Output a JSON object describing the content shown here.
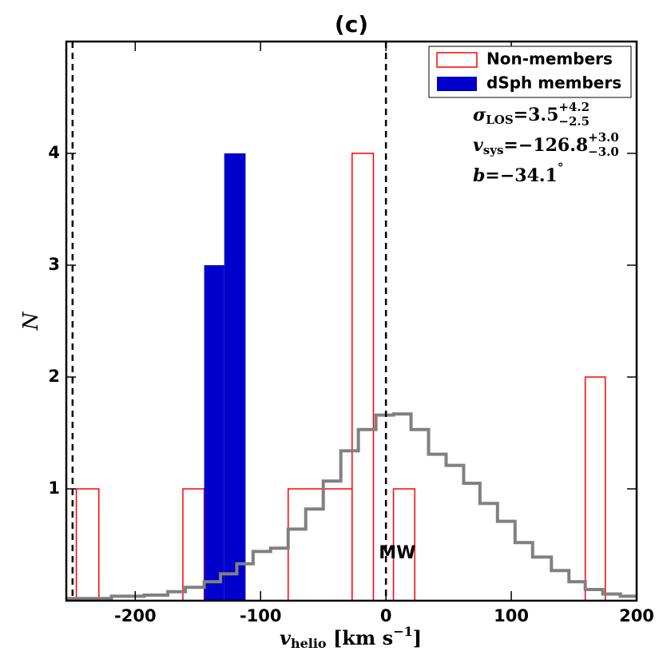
{
  "chart_data": {
    "type": "histogram",
    "title": "(c)",
    "xlabel": {
      "symbol": "v",
      "sub": "helio",
      "unit": " [km s",
      "sup": "−1",
      "close": "]"
    },
    "ylabel": "N",
    "xlim": [
      -255,
      200
    ],
    "ylim": [
      0,
      5
    ],
    "xticks": [
      -200,
      -100,
      0,
      100,
      200
    ],
    "yticks": [
      1,
      2,
      3,
      4
    ],
    "legend": "upper right",
    "series": [
      {
        "name": "Non-members",
        "color": "#ff0000",
        "style": "outline",
        "bins": [
          -247,
          -229,
          -162,
          -145,
          -78,
          -27,
          -10,
          6,
          23,
          159,
          175
        ],
        "values": [
          1,
          0,
          1,
          0,
          1,
          4,
          0,
          1,
          0,
          2
        ]
      },
      {
        "name": "dSph members",
        "color": "#0000cc",
        "style": "filled",
        "bins": [
          -145,
          -129,
          -112
        ],
        "values": [
          3,
          4
        ]
      },
      {
        "color": "#808080",
        "style": "step",
        "bins": [
          -255,
          -219,
          -193,
          -174,
          -160,
          -145,
          -132,
          -119,
          -106,
          -92,
          -78,
          -64,
          -50,
          -36,
          -22,
          -8,
          6,
          20,
          34,
          48,
          62,
          75,
          89,
          103,
          117,
          132,
          146,
          159,
          173,
          187,
          200
        ],
        "values": [
          0.02,
          0.04,
          0.05,
          0.08,
          0.12,
          0.17,
          0.24,
          0.33,
          0.44,
          0.47,
          0.64,
          0.82,
          1.07,
          1.34,
          1.53,
          1.66,
          1.67,
          1.53,
          1.31,
          1.21,
          1.05,
          0.87,
          0.71,
          0.52,
          0.39,
          0.27,
          0.17,
          0.1,
          0.06,
          0.04
        ]
      }
    ],
    "vlines": [
      -250,
      0
    ],
    "annotations": [
      {
        "text": "MW",
        "x": 9,
        "y": 0.42
      },
      {
        "symbol": "σ",
        "sub": "LOS",
        "main": "=3.5",
        "sup": "+4.2",
        "low": "−2.5"
      },
      {
        "symbol": "v",
        "sub": "sys",
        "main": "=−126.8",
        "sup": "+3.0",
        "low": "−3.0"
      },
      {
        "symbol": "b",
        "main": "=−34.1",
        "sup": "°"
      }
    ]
  }
}
